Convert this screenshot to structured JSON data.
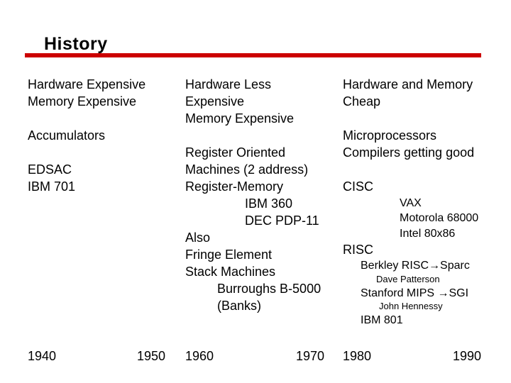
{
  "slide": {
    "title": "History",
    "accent_color": "#cc0000"
  },
  "col1": {
    "heading_1": "Hardware Expensive",
    "heading_2": "Memory Expensive",
    "accumulators": "Accumulators",
    "edsac": "EDSAC",
    "ibm701": "IBM 701"
  },
  "col2": {
    "heading_1": "Hardware Less",
    "heading_2": "Expensive",
    "heading_3": "Memory Expensive",
    "reg_1": "Register Oriented",
    "reg_2": "Machines (2 address)",
    "reg_3": "Register-Memory",
    "ibm360": "IBM 360",
    "pdp11": "DEC PDP-11",
    "also": "Also",
    "fringe": "Fringe Element",
    "stack": "Stack Machines",
    "burroughs": "Burroughs B-5000",
    "banks": "(Banks)"
  },
  "col3": {
    "heading_1": "Hardware and Memory",
    "heading_2": "Cheap",
    "micro": "Microprocessors",
    "compilers": "Compilers getting good",
    "cisc": "CISC",
    "vax": "VAX",
    "motorola": "Motorola 68000",
    "intel": "Intel 80x86",
    "risc": "RISC",
    "berkeley": "Berkley RISC→Sparc",
    "patterson": "Dave Patterson",
    "stanford": "Stanford MIPS →SGI",
    "hennessy": "John Hennessy",
    "ibm801": "IBM 801"
  },
  "years": [
    "1940",
    "1950",
    "1960",
    "1970",
    "1980",
    "1990"
  ]
}
